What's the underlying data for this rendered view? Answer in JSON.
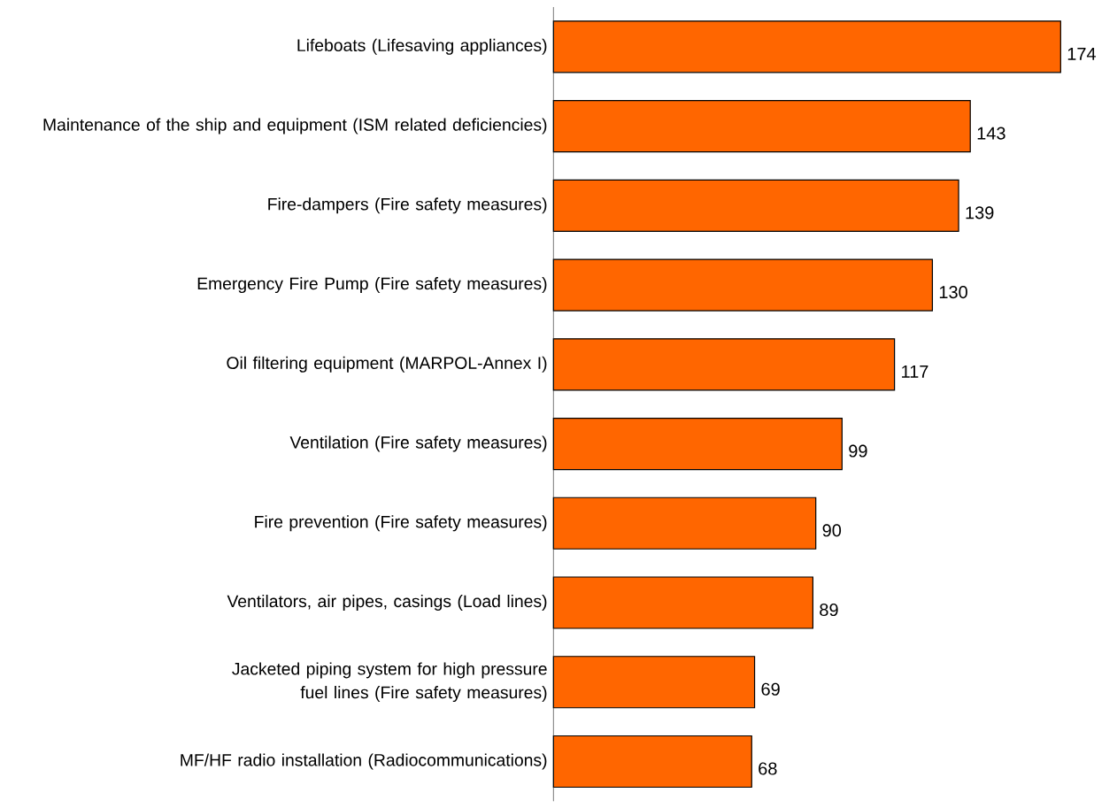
{
  "chart_data": {
    "type": "bar",
    "orientation": "horizontal",
    "color": "#ff6600",
    "data_labels": true,
    "categories": [
      "Lifeboats (Lifesaving appliances)",
      "Maintenance of the ship and equipment (ISM related deficiencies)",
      "Fire-dampers (Fire safety measures)",
      "Emergency Fire Pump (Fire safety measures)",
      "Oil filtering equipment (MARPOL-Annex I)",
      "Ventilation (Fire safety measures)",
      "Fire prevention (Fire safety measures)",
      "Ventilators, air pipes, casings (Load lines)",
      "Jacketed piping system for high pressure fuel lines (Fire safety measures)",
      "MF/HF radio installation (Radiocommunications)"
    ],
    "values": [
      174,
      143,
      139,
      130,
      117,
      99,
      90,
      89,
      69,
      68
    ]
  }
}
